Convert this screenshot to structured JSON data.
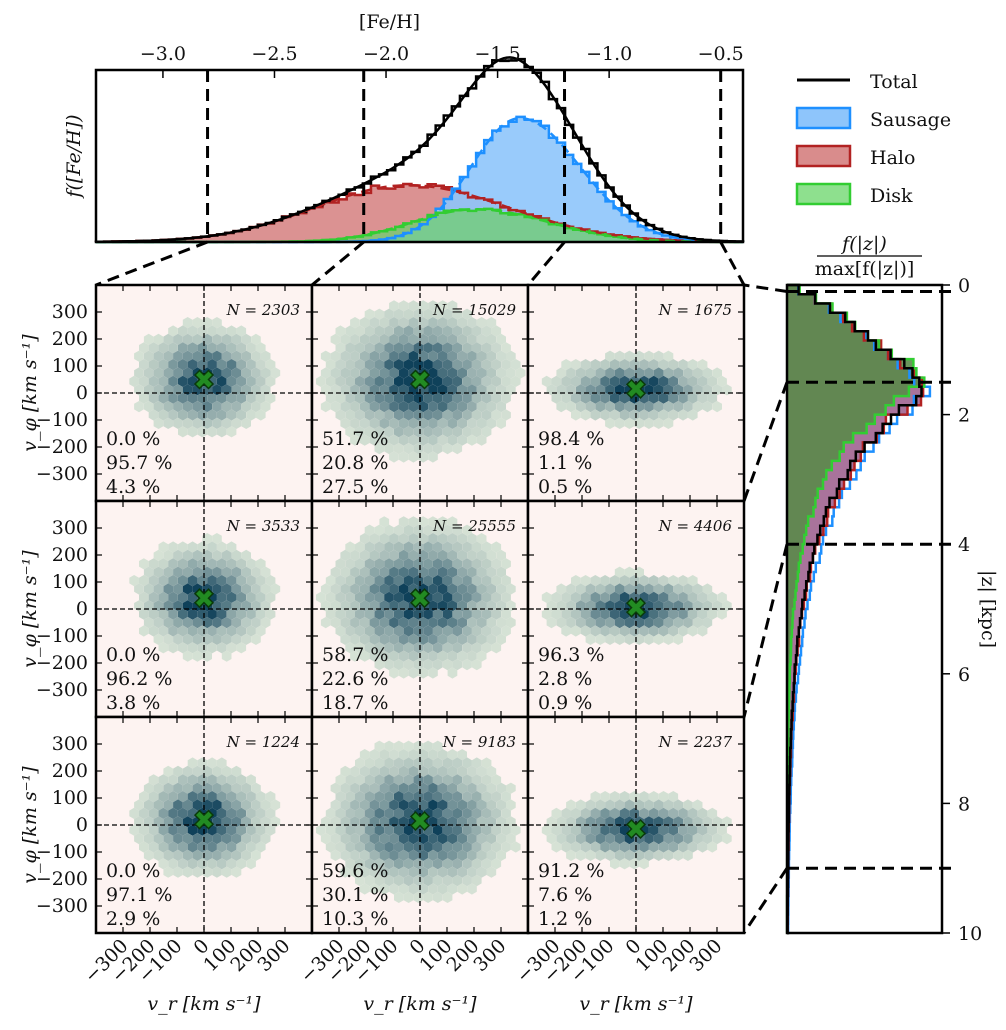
{
  "chart_data": [
    {
      "type": "histogram",
      "name": "metallicity distribution",
      "title": "",
      "xlabel": "[Fe/H]",
      "ylabel": "f([Fe/H])",
      "xlim": [
        -3.3,
        -0.4
      ],
      "xticks": [
        -3.0,
        -2.5,
        -2.0,
        -1.5,
        -1.0,
        -0.5
      ],
      "xtick_labels": [
        "−3.0",
        "−2.5",
        "−2.0",
        "−1.5",
        "−1.0",
        "−0.5"
      ],
      "bin_edges_feh": [
        -2.8,
        -2.1,
        -1.2,
        -0.5
      ],
      "series": [
        {
          "name": "Total",
          "peak_feh": -1.45,
          "peak_height": 0.95
        },
        {
          "name": "Sausage",
          "peak_feh": -1.4,
          "peak_height": 0.72
        },
        {
          "name": "Halo",
          "peak_feh": -1.9,
          "peak_height": 0.33
        },
        {
          "name": "Disk",
          "peak_feh": -1.6,
          "peak_height": 0.19
        }
      ],
      "legend": {
        "position": "right",
        "entries": [
          {
            "label": "Total",
            "color": "#000000"
          },
          {
            "label": "Sausage",
            "color": "#1e90ff"
          },
          {
            "label": "Halo",
            "color": "#b22222"
          },
          {
            "label": "Disk",
            "color": "#32cd32"
          }
        ]
      }
    },
    {
      "type": "heatmap",
      "name": "velocity panels",
      "xlabel": "v_r [km s⁻¹]",
      "ylabel": "v_φ [km s⁻¹]",
      "xlim": [
        -400,
        400
      ],
      "ylim": [
        -400,
        400
      ],
      "xticks": [
        -300,
        -200,
        -100,
        0,
        100,
        200,
        300
      ],
      "xtick_labels": [
        "−300",
        "−200",
        "−100",
        "0",
        "100",
        "200",
        "300"
      ],
      "yticks": [
        300,
        200,
        100,
        0,
        -100,
        -200,
        -300
      ],
      "ytick_labels": [
        "300",
        "200",
        "100",
        "0",
        "−100",
        "−200",
        "−300"
      ],
      "panels": [
        {
          "row": 0,
          "col": 0,
          "N": "N = 2303",
          "sausage": "0.0 %",
          "halo": "95.7 %",
          "disk": "4.3 %",
          "mean_vr": 0,
          "mean_vphi": 50
        },
        {
          "row": 0,
          "col": 1,
          "N": "N = 15029",
          "sausage": "51.7 %",
          "halo": "20.8 %",
          "disk": "27.5 %",
          "mean_vr": 0,
          "mean_vphi": 50
        },
        {
          "row": 0,
          "col": 2,
          "N": "N = 1675",
          "sausage": "98.4 %",
          "halo": "1.1 %",
          "disk": "0.5 %",
          "mean_vr": 0,
          "mean_vphi": 15
        },
        {
          "row": 1,
          "col": 0,
          "N": "N = 3533",
          "sausage": "0.0 %",
          "halo": "96.2 %",
          "disk": "3.8 %",
          "mean_vr": 0,
          "mean_vphi": 40
        },
        {
          "row": 1,
          "col": 1,
          "N": "N = 25555",
          "sausage": "58.7 %",
          "halo": "22.6 %",
          "disk": "18.7 %",
          "mean_vr": 0,
          "mean_vphi": 40
        },
        {
          "row": 1,
          "col": 2,
          "N": "N = 4406",
          "sausage": "96.3 %",
          "halo": "2.8 %",
          "disk": "0.9 %",
          "mean_vr": 0,
          "mean_vphi": 5
        },
        {
          "row": 2,
          "col": 0,
          "N": "N = 1224",
          "sausage": "0.0 %",
          "halo": "97.1 %",
          "disk": "2.9 %",
          "mean_vr": 0,
          "mean_vphi": 20
        },
        {
          "row": 2,
          "col": 1,
          "N": "N = 9183",
          "sausage": "59.6 %",
          "halo": "30.1 %",
          "disk": "10.3 %",
          "mean_vr": 0,
          "mean_vphi": 15
        },
        {
          "row": 2,
          "col": 2,
          "N": "N = 2237",
          "sausage": "91.2 %",
          "halo": "7.6 %",
          "disk": "1.2 %",
          "mean_vr": 0,
          "mean_vphi": -15
        }
      ]
    },
    {
      "type": "histogram",
      "name": "height distribution",
      "xlabel": "f(|z|) / max[f(|z|)]",
      "ylabel": "|z| [kpc]",
      "ylim": [
        0,
        10
      ],
      "yticks": [
        0,
        2,
        4,
        6,
        8,
        10
      ],
      "ytick_labels": [
        "0",
        "2",
        "4",
        "6",
        "8",
        "10"
      ],
      "bin_edges_z": [
        0.1,
        1.5,
        4.0,
        9.0
      ],
      "peak_z": 1.6
    }
  ],
  "labels": {
    "top_xlabel": "[Fe/H]",
    "top_ylabel": "f([Fe/H])",
    "vr_label": "v_r [km s⁻¹]",
    "vphi_label": "v_φ [km s⁻¹]",
    "z_label": "|z| [kpc]",
    "z_top_num": "f(|z|)",
    "z_top_den": "max[f(|z|)]"
  },
  "colors": {
    "sausage": "#3399ff",
    "halo": "#c03030",
    "disk": "#44cc44",
    "panel_bg": "#fdf3f1",
    "marker": "#228b22"
  }
}
